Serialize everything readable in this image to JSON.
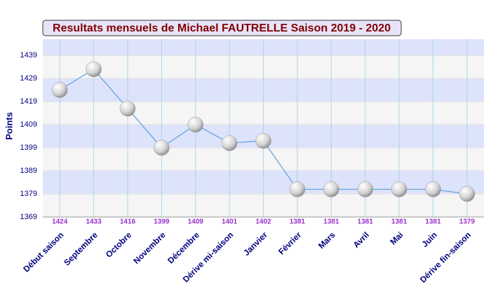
{
  "chart_data": {
    "type": "line",
    "title": "Resultats mensuels de Michael FAUTRELLE Saison 2019 - 2020",
    "y_label": "Points",
    "categories": [
      "Début saison",
      "Septembre",
      "Octobre",
      "Novembre",
      "Décembre",
      "Dérive mi-saison",
      "Janvier",
      "Février",
      "Mars",
      "Avril",
      "Mai",
      "Juin",
      "Dérive fin-saison"
    ],
    "values": [
      1424,
      1433,
      1416,
      1399,
      1409,
      1401,
      1402,
      1381,
      1381,
      1381,
      1381,
      1381,
      1379
    ],
    "color": "#5aa0e0",
    "ylim": [
      1369,
      1446
    ],
    "yticks": [
      1369,
      1379,
      1389,
      1399,
      1409,
      1419,
      1429,
      1439
    ],
    "grid": true
  }
}
